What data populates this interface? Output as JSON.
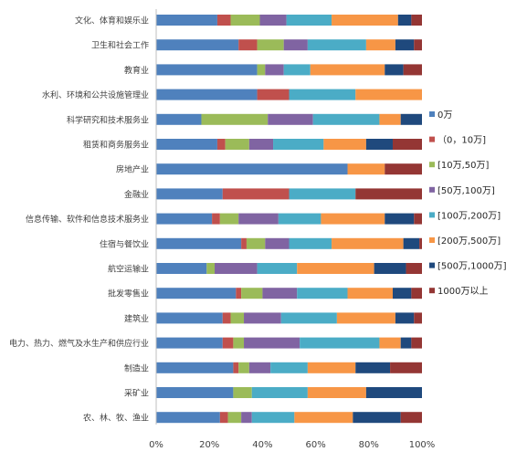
{
  "chart_data": {
    "type": "bar",
    "orientation": "horizontal",
    "stacked": "percent",
    "categories": [
      "文化、体育和娱乐业",
      "卫生和社会工作",
      "教育业",
      "水利、环境和公共设施管理业",
      "科学研究和技术服务业",
      "租赁和商务服务业",
      "房地产业",
      "金融业",
      "信息传输、软件和信息技术服务业",
      "住宿与餐饮业",
      "航空运输业",
      "批发零售业",
      "建筑业",
      "电力、热力、燃气及水生产和供应行业",
      "制造业",
      "采矿业",
      "农、林、牧、渔业"
    ],
    "series": [
      {
        "name": "0万",
        "color": "#4f81bd",
        "values": [
          23,
          31,
          38,
          38,
          17,
          23,
          72,
          25,
          21,
          32,
          19,
          30,
          25,
          25,
          29,
          29,
          24
        ]
      },
      {
        "name": "（0，10万]",
        "color": "#c0504d",
        "values": [
          5,
          7,
          0,
          12,
          0,
          3,
          0,
          25,
          3,
          2,
          0,
          2,
          3,
          4,
          2,
          0,
          3
        ]
      },
      {
        "name": "[10万,50万]",
        "color": "#9bbb59",
        "values": [
          11,
          10,
          3,
          0,
          25,
          9,
          0,
          0,
          7,
          7,
          3,
          8,
          5,
          4,
          4,
          7,
          5
        ]
      },
      {
        "name": "[50万,100万]",
        "color": "#8064a2",
        "values": [
          10,
          9,
          7,
          0,
          17,
          9,
          0,
          0,
          15,
          9,
          16,
          13,
          14,
          21,
          8,
          0,
          4
        ]
      },
      {
        "name": "[100万,200万]",
        "color": "#4bacc6",
        "values": [
          17,
          22,
          10,
          25,
          25,
          19,
          0,
          25,
          16,
          16,
          15,
          19,
          21,
          30,
          14,
          21,
          16
        ]
      },
      {
        "name": "[200万,500万]",
        "color": "#f79646",
        "values": [
          25,
          11,
          28,
          25,
          8,
          16,
          14,
          0,
          24,
          27,
          29,
          17,
          22,
          8,
          18,
          22,
          22
        ]
      },
      {
        "name": "[500万,1000万]",
        "color": "#1f497d",
        "values": [
          5,
          7,
          7,
          0,
          8,
          10,
          0,
          0,
          11,
          6,
          12,
          7,
          7,
          4,
          13,
          21,
          18
        ]
      },
      {
        "name": "1000万以上",
        "color": "#943634",
        "values": [
          4,
          3,
          7,
          0,
          0,
          11,
          14,
          25,
          3,
          1,
          6,
          4,
          3,
          4,
          12,
          0,
          8
        ]
      }
    ],
    "xlim": [
      0,
      100
    ],
    "xticks": [
      "0%",
      "20%",
      "40%",
      "60%",
      "80%",
      "100%"
    ],
    "gridlines": false,
    "legend_position": "right"
  }
}
